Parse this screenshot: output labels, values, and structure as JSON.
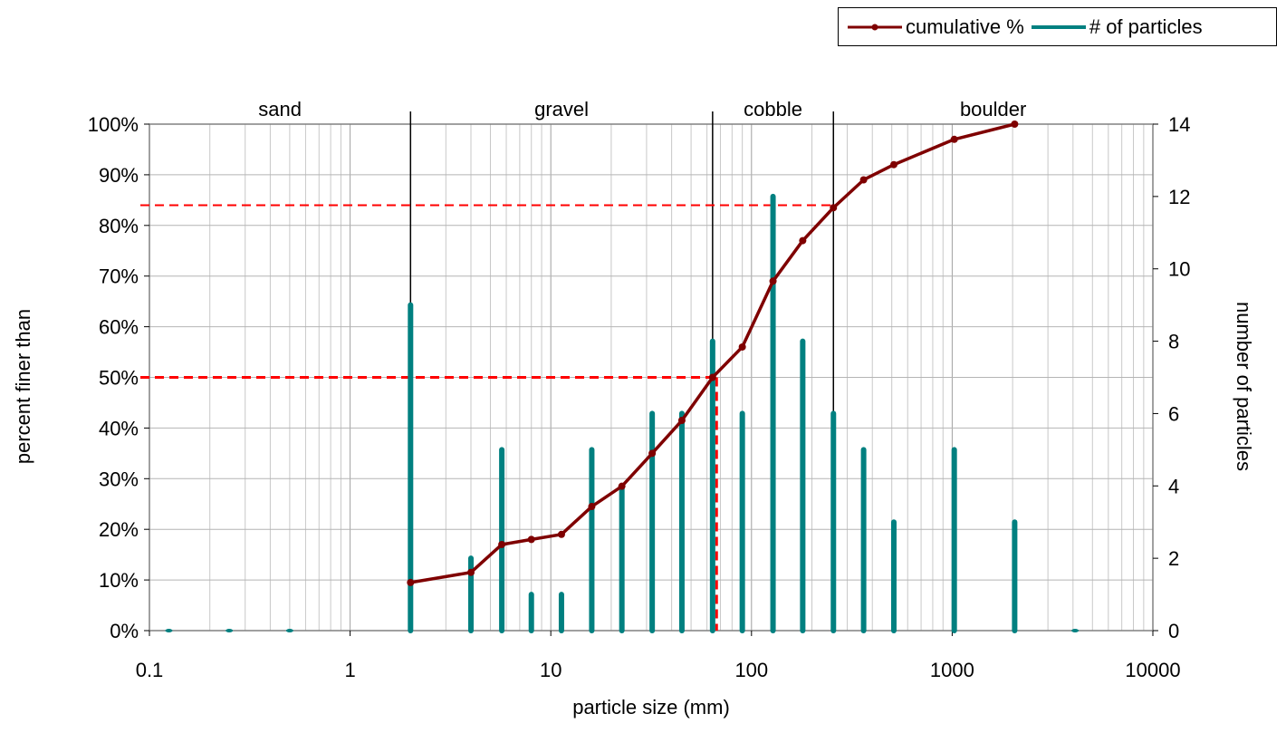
{
  "chart_data": {
    "type": "line",
    "xlabel": "particle size (mm)",
    "ylabel": "percent finer than",
    "y2label": "number of particles",
    "xscale": "log",
    "xlim": [
      0.1,
      10000
    ],
    "ylim": [
      0,
      100
    ],
    "y2lim": [
      0,
      14
    ],
    "x_ticks": [
      "0.1",
      "1",
      "10",
      "100",
      "1000",
      "10000"
    ],
    "y_ticks": [
      "0%",
      "10%",
      "20%",
      "30%",
      "40%",
      "50%",
      "60%",
      "70%",
      "80%",
      "90%",
      "100%"
    ],
    "y2_ticks": [
      "0",
      "2",
      "4",
      "6",
      "8",
      "10",
      "12",
      "14"
    ],
    "grid": true,
    "legend_position": "top-right",
    "legend": [
      "cumulative %",
      "# of particles"
    ],
    "size_classes": [
      {
        "label": "sand",
        "from": 0.1,
        "to": 2
      },
      {
        "label": "gravel",
        "from": 2,
        "to": 64
      },
      {
        "label": "cobble",
        "from": 64,
        "to": 256
      },
      {
        "label": "boulder",
        "from": 256,
        "to": 10000
      }
    ],
    "series": [
      {
        "name": "cumulative %",
        "axis": "left",
        "color": "#7f0000",
        "x": [
          2,
          4,
          5.7,
          8,
          11.3,
          16,
          22.6,
          32,
          45,
          64,
          90,
          128,
          180,
          256,
          362,
          512,
          1024,
          2048
        ],
        "y": [
          9.5,
          11.5,
          17,
          18,
          19,
          24.5,
          28.5,
          35,
          41.5,
          50,
          56,
          69,
          77,
          83.5,
          89,
          92,
          97,
          100
        ]
      },
      {
        "name": "# of particles",
        "axis": "right",
        "color": "#008080",
        "x": [
          0.125,
          0.25,
          0.5,
          2,
          4,
          5.7,
          8,
          11.3,
          16,
          22.6,
          32,
          45,
          64,
          90,
          128,
          180,
          256,
          362,
          512,
          1024,
          2048,
          4096
        ],
        "y": [
          0,
          0,
          0,
          9,
          2,
          5,
          1,
          1,
          5,
          4,
          6,
          6,
          8,
          6,
          12,
          8,
          6,
          5,
          3,
          5,
          3,
          0
        ]
      }
    ],
    "reference_lines": [
      {
        "percent": 84,
        "size": 256
      },
      {
        "percent": 50,
        "size": 67
      }
    ]
  }
}
